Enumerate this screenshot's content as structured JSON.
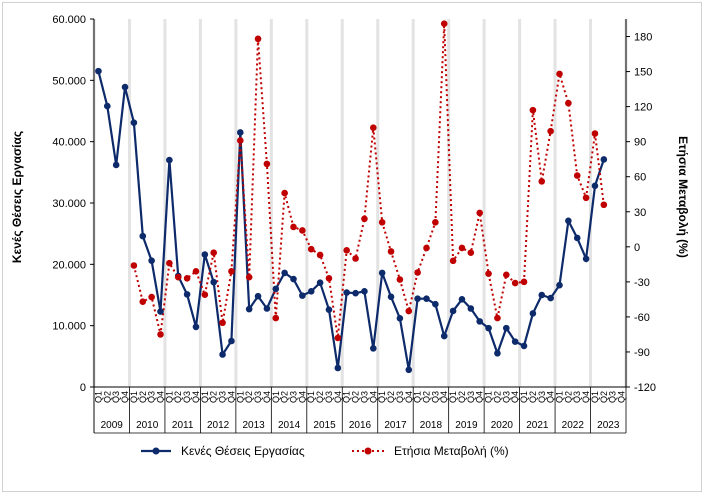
{
  "chart_data": {
    "type": "line",
    "title": "",
    "quarter_labels": [
      "Q1",
      "Q2",
      "Q3",
      "Q4"
    ],
    "years": [
      "2009",
      "2010",
      "2011",
      "2012",
      "2013",
      "2014",
      "2015",
      "2016",
      "2017",
      "2018",
      "2019",
      "2020",
      "2021",
      "2022",
      "2023"
    ],
    "ylabel_left": "Κενές Θέσεις Εργασίας",
    "ylabel_right": "Ετήσια Μεταβολή (%)",
    "y_left": {
      "min": 0,
      "max": 60000,
      "step": 10000,
      "tick_labels": [
        "0",
        "10.000",
        "20.000",
        "30.000",
        "40.000",
        "50.000",
        "60.000"
      ]
    },
    "y_right": {
      "min": -120,
      "max": 195,
      "step": 30,
      "tick_labels": [
        "-120",
        "-90",
        "-60",
        "-30",
        "0",
        "30",
        "60",
        "90",
        "120",
        "150",
        "180"
      ]
    },
    "grid": "vertical year separators",
    "legend_position": "bottom",
    "series": [
      {
        "name": "Κενές Θέσεις Εργασίας",
        "axis": "left",
        "color": "#0d2a6b",
        "style": "solid",
        "values": [
          51500,
          45800,
          36200,
          48900,
          43100,
          24600,
          20600,
          12300,
          37000,
          18100,
          15100,
          9800,
          21600,
          17100,
          5300,
          7500,
          41500,
          12700,
          14800,
          12800,
          16000,
          18600,
          17600,
          14900,
          15600,
          17000,
          12600,
          3100,
          15400,
          15300,
          15600,
          6300,
          18600,
          14700,
          11200,
          2800,
          14400,
          14400,
          13500,
          8300,
          12400,
          14300,
          12800,
          10700,
          9600,
          5500,
          9600,
          7400,
          6700,
          12000,
          15000,
          14500,
          16600,
          27100,
          24300,
          20900,
          32800,
          37100,
          null
        ]
      },
      {
        "name": "Ετήσια Μεταβολή (%)",
        "axis": "right",
        "color": "#c00000",
        "style": "dotted",
        "values": [
          null,
          null,
          null,
          null,
          -16,
          -47,
          -43,
          -75,
          -14,
          -26,
          -27,
          -21,
          -41,
          -5,
          -65,
          -21,
          91,
          -26,
          178,
          71,
          -61,
          46,
          17,
          14,
          -2,
          -7,
          -27,
          -78,
          -3,
          -10,
          24,
          102,
          21,
          -4,
          -28,
          -55,
          -22,
          -1,
          21,
          191,
          -12,
          -1,
          -5,
          29,
          -23,
          -61,
          -24,
          -31,
          -30,
          117,
          56,
          99,
          148,
          123,
          61,
          42,
          97,
          36,
          null
        ]
      }
    ]
  }
}
